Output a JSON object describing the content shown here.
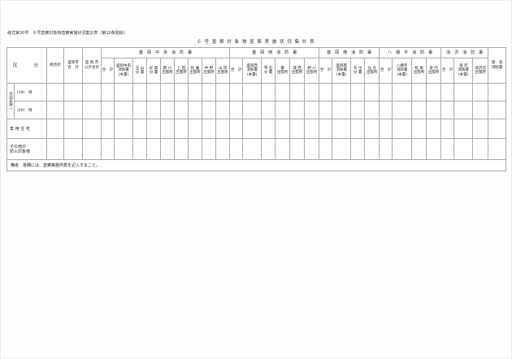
{
  "page": {
    "header_line": "様式第30号　６号査察対象物査察実施状況集計表（第10条関係）",
    "table_title": "６ 号 査 察 対 象 物 査 察 実 施 状 況 集 計 表"
  },
  "table": {
    "corner_label": "区　　分",
    "total_cols": [
      {
        "id": "grand-total",
        "lines": [
          "総合計"
        ],
        "width": 21
      },
      {
        "id": "morioka-city-total",
        "lines": [
          "盛岡市",
          "合　計"
        ],
        "width": 23
      },
      {
        "id": "non-morioka-total",
        "lines": [
          "盛 岡 市",
          "以外合計"
        ],
        "width": 23
      }
    ],
    "groups": [
      {
        "label": "盛　岡　中　央　消　防　署",
        "stations": [
          {
            "lines": [
              "合　計"
            ],
            "width": 16
          },
          {
            "lines": [
              "盛岡中央",
              "消防署",
              "(本署)"
            ],
            "width": 23
          },
          {
            "lines": [
              "玉 山",
              "分 署"
            ],
            "width": 17
          },
          {
            "lines": [
              "好 摩",
              "分 署"
            ],
            "width": 17
          },
          {
            "lines": [
              "薮 川",
              "出張所"
            ],
            "width": 17
          },
          {
            "lines": [
              "上 田",
              "出張所"
            ],
            "width": 17
          },
          {
            "lines": [
              "松 園",
              "出張所"
            ],
            "width": 17
          },
          {
            "lines": [
              "中 野",
              "出張所"
            ],
            "width": 17
          },
          {
            "lines": [
              "山 岸",
              "出張所"
            ],
            "width": 17
          }
        ]
      },
      {
        "label": "盛　岡　西　消　防　署",
        "stations": [
          {
            "lines": [
              "合　計"
            ],
            "width": 16
          },
          {
            "lines": [
              "盛岡西",
              "消防署",
              "(本署)"
            ],
            "width": 23
          },
          {
            "lines": [
              "雫 石",
              "分 署"
            ],
            "width": 17
          },
          {
            "lines": [
              "繋",
              "出張所"
            ],
            "width": 18
          },
          {
            "lines": [
              "城 西",
              "出張所"
            ],
            "width": 18
          },
          {
            "lines": [
              "厨 川",
              "出張所"
            ],
            "width": 18
          }
        ]
      },
      {
        "label": "盛　岡　南　消　防　署",
        "stations": [
          {
            "lines": [
              "合　計"
            ],
            "width": 16
          },
          {
            "lines": [
              "盛岡南",
              "消防署",
              "(本署)"
            ],
            "width": 23
          },
          {
            "lines": [
              "矢 巾",
              "分 署"
            ],
            "width": 17
          },
          {
            "lines": [
              "仙 北",
              "出張所"
            ],
            "width": 18
          }
        ]
      },
      {
        "label": "八　幡　平　消　防　署",
        "stations": [
          {
            "lines": [
              "合　計"
            ],
            "width": 16
          },
          {
            "lines": [
              "八幡平",
              "消防署",
              "(本署)"
            ],
            "width": 24
          },
          {
            "lines": [
              "松 尾",
              "出張所"
            ],
            "width": 18
          },
          {
            "lines": [
              "安 代",
              "出張所"
            ],
            "width": 18
          }
        ]
      },
      {
        "label": "滝　沢　消　防　署",
        "stations": [
          {
            "lines": [
              "合　計"
            ],
            "width": 16
          },
          {
            "lines": [
              "滝 沢",
              "消防署",
              "(本署)"
            ],
            "width": 23
          },
          {
            "lines": [
              "滝沢北",
              "出張所"
            ],
            "width": 19
          }
        ]
      }
    ],
    "last_col": {
      "id": "shiwa",
      "lines": [
        "紫　波",
        "消防署"
      ],
      "width": 22
    },
    "rows": [
      {
        "group_label": "令別表第一",
        "item": "(19)　項",
        "height": 22
      },
      {
        "item": "(20)　項",
        "height": 22
      },
      {
        "item": "専 用 住 宅",
        "span": 2,
        "height": 24
      },
      {
        "lines": [
          "その他の",
          "防火対象物"
        ],
        "span": 2,
        "height": 26
      }
    ],
    "note": "備考　各欄には、査察実施件数を記入すること。"
  }
}
